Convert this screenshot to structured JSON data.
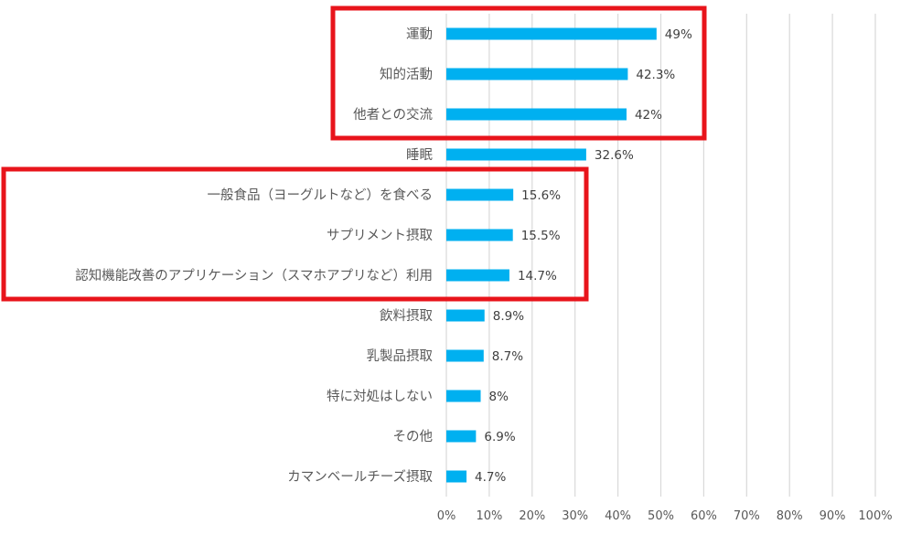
{
  "chart_data": {
    "type": "bar",
    "orientation": "horizontal",
    "title": "",
    "xlabel": "",
    "ylabel": "",
    "xlim": [
      0,
      100
    ],
    "grid": true,
    "categories": [
      "運動",
      "知的活動",
      "他者との交流",
      "睡眠",
      "一般食品（ヨーグルトなど）を食べる",
      "サプリメント摂取",
      "認知機能改善のアプリケーション（スマホアプリなど）利用",
      "飲料摂取",
      "乳製品摂取",
      "特に対処はしない",
      "その他",
      "カマンベールチーズ摂取"
    ],
    "values": [
      49,
      42.3,
      42,
      32.6,
      15.6,
      15.5,
      14.7,
      8.9,
      8.7,
      8,
      6.9,
      4.7
    ],
    "value_labels": [
      "49%",
      "42.3%",
      "42%",
      "32.6%",
      "15.6%",
      "15.5%",
      "14.7%",
      "8.9%",
      "8.7%",
      "8%",
      "6.9%",
      "4.7%"
    ],
    "x_ticks": [
      0,
      10,
      20,
      30,
      40,
      50,
      60,
      70,
      80,
      90,
      100
    ],
    "x_tick_labels": [
      "0%",
      "10%",
      "20%",
      "30%",
      "40%",
      "50%",
      "60%",
      "70%",
      "80%",
      "90%",
      "100%"
    ],
    "highlight_groups": [
      {
        "name": "highlight-group-1",
        "categories": [
          "運動",
          "知的活動",
          "他者との交流"
        ]
      },
      {
        "name": "highlight-group-2",
        "categories": [
          "一般食品（ヨーグルトなど）を食べる",
          "サプリメント摂取",
          "認知機能改善のアプリケーション（スマホアプリなど）利用"
        ]
      }
    ],
    "colors": {
      "bar": "#00B0F0",
      "grid": "#D9D9D9",
      "highlight": "#E8141B"
    }
  }
}
